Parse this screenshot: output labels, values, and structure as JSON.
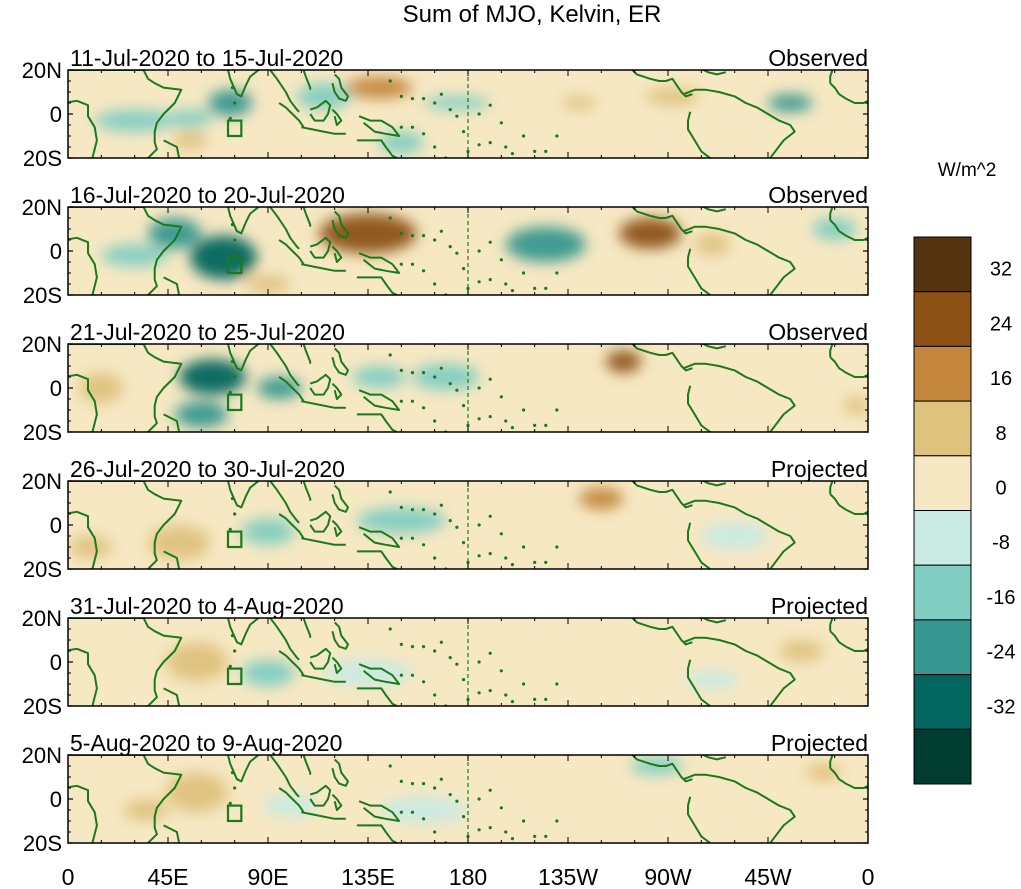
{
  "chart_data": {
    "type": "heatmap",
    "title": "Sum of MJO, Kelvin, ER",
    "units": "W/m^2",
    "x_ticks": [
      "0",
      "45E",
      "90E",
      "135E",
      "180",
      "135W",
      "90W",
      "45W",
      "0"
    ],
    "y_ticks": [
      "20N",
      "0",
      "20S"
    ],
    "xlim": [
      0,
      360
    ],
    "ylim": [
      -20,
      20
    ],
    "colorbar": {
      "levels": [
        32,
        24,
        16,
        8,
        0,
        -8,
        -16,
        -24,
        -32
      ],
      "colors": [
        "#553311",
        "#8c5115",
        "#c3863b",
        "#dfc27e",
        "#f6e8c3",
        "#c8eae3",
        "#80cdc1",
        "#35978f",
        "#03665e",
        "#003d30"
      ]
    },
    "panels": [
      {
        "date_range": "11-Jul-2020 to 15-Jul-2020",
        "status": "Observed",
        "anomalies": [
          {
            "lon": 30,
            "lat": -3,
            "rlon": 18,
            "rlat": 5,
            "value": -14
          },
          {
            "lon": 55,
            "lat": -2,
            "rlon": 10,
            "rlat": 4,
            "value": -10
          },
          {
            "lon": 73,
            "lat": 5,
            "rlon": 10,
            "rlat": 6,
            "value": -20
          },
          {
            "lon": 55,
            "lat": -12,
            "rlon": 8,
            "rlat": 4,
            "value": 10
          },
          {
            "lon": 115,
            "lat": 8,
            "rlon": 12,
            "rlat": 6,
            "value": -10
          },
          {
            "lon": 140,
            "lat": 12,
            "rlon": 15,
            "rlat": 5,
            "value": 22
          },
          {
            "lon": 175,
            "lat": 5,
            "rlon": 15,
            "rlat": 3,
            "value": -14
          },
          {
            "lon": 230,
            "lat": 5,
            "rlon": 8,
            "rlat": 3,
            "value": 10
          },
          {
            "lon": 272,
            "lat": 8,
            "rlon": 12,
            "rlat": 4,
            "value": 12
          },
          {
            "lon": 325,
            "lat": 5,
            "rlon": 10,
            "rlat": 4,
            "value": -20
          },
          {
            "lon": 150,
            "lat": -13,
            "rlon": 10,
            "rlat": 5,
            "value": -10
          }
        ]
      },
      {
        "date_range": "16-Jul-2020 to 20-Jul-2020",
        "status": "Observed",
        "anomalies": [
          {
            "lon": 70,
            "lat": -3,
            "rlon": 15,
            "rlat": 10,
            "value": -30
          },
          {
            "lon": 48,
            "lat": 8,
            "rlon": 12,
            "rlat": 7,
            "value": -18
          },
          {
            "lon": 30,
            "lat": -2,
            "rlon": 15,
            "rlat": 5,
            "value": -10
          },
          {
            "lon": 135,
            "lat": 8,
            "rlon": 22,
            "rlat": 9,
            "value": 24
          },
          {
            "lon": 215,
            "lat": 3,
            "rlon": 18,
            "rlat": 8,
            "value": -20
          },
          {
            "lon": 262,
            "lat": 8,
            "rlon": 14,
            "rlat": 7,
            "value": 26
          },
          {
            "lon": 290,
            "lat": 3,
            "rlon": 8,
            "rlat": 5,
            "value": 10
          },
          {
            "lon": 345,
            "lat": 10,
            "rlon": 10,
            "rlat": 5,
            "value": -12
          },
          {
            "lon": 90,
            "lat": -15,
            "rlon": 10,
            "rlat": 4,
            "value": 10
          }
        ]
      },
      {
        "date_range": "21-Jul-2020 to 25-Jul-2020",
        "status": "Observed",
        "anomalies": [
          {
            "lon": 65,
            "lat": 5,
            "rlon": 15,
            "rlat": 8,
            "value": -28
          },
          {
            "lon": 60,
            "lat": -12,
            "rlon": 12,
            "rlat": 6,
            "value": -24
          },
          {
            "lon": 95,
            "lat": 0,
            "rlon": 10,
            "rlat": 5,
            "value": -18
          },
          {
            "lon": 15,
            "lat": 0,
            "rlon": 10,
            "rlat": 7,
            "value": 10
          },
          {
            "lon": 140,
            "lat": 5,
            "rlon": 12,
            "rlat": 5,
            "value": -16
          },
          {
            "lon": 250,
            "lat": 12,
            "rlon": 8,
            "rlat": 5,
            "value": 30
          },
          {
            "lon": 170,
            "lat": 5,
            "rlon": 15,
            "rlat": 6,
            "value": -10
          },
          {
            "lon": 355,
            "lat": -8,
            "rlon": 6,
            "rlat": 4,
            "value": 12
          }
        ]
      },
      {
        "date_range": "26-Jul-2020 to 30-Jul-2020",
        "status": "Projected",
        "anomalies": [
          {
            "lon": 50,
            "lat": -8,
            "rlon": 14,
            "rlat": 8,
            "value": 8
          },
          {
            "lon": 90,
            "lat": -3,
            "rlon": 12,
            "rlat": 6,
            "value": -10
          },
          {
            "lon": 150,
            "lat": 2,
            "rlon": 20,
            "rlat": 6,
            "value": -14
          },
          {
            "lon": 240,
            "lat": 12,
            "rlon": 10,
            "rlat": 5,
            "value": 22
          },
          {
            "lon": 300,
            "lat": -5,
            "rlon": 15,
            "rlat": 6,
            "value": -8
          },
          {
            "lon": 10,
            "lat": -10,
            "rlon": 10,
            "rlat": 5,
            "value": 8
          }
        ]
      },
      {
        "date_range": "31-Jul-2020 to 4-Aug-2020",
        "status": "Projected",
        "anomalies": [
          {
            "lon": 58,
            "lat": 0,
            "rlon": 14,
            "rlat": 9,
            "value": 12
          },
          {
            "lon": 90,
            "lat": -5,
            "rlon": 12,
            "rlat": 6,
            "value": -10
          },
          {
            "lon": 135,
            "lat": -5,
            "rlon": 20,
            "rlat": 6,
            "value": -8
          },
          {
            "lon": 220,
            "lat": 8,
            "rlon": 15,
            "rlat": 4,
            "value": 6
          },
          {
            "lon": 330,
            "lat": 5,
            "rlon": 10,
            "rlat": 5,
            "value": 8
          },
          {
            "lon": 290,
            "lat": -8,
            "rlon": 12,
            "rlat": 4,
            "value": -8
          }
        ]
      },
      {
        "date_range": "5-Aug-2020 to 9-Aug-2020",
        "status": "Projected",
        "anomalies": [
          {
            "lon": 58,
            "lat": 3,
            "rlon": 14,
            "rlat": 9,
            "value": 14
          },
          {
            "lon": 35,
            "lat": -5,
            "rlon": 10,
            "rlat": 5,
            "value": 10
          },
          {
            "lon": 100,
            "lat": -3,
            "rlon": 12,
            "rlat": 5,
            "value": -8
          },
          {
            "lon": 160,
            "lat": -5,
            "rlon": 20,
            "rlat": 6,
            "value": -6
          },
          {
            "lon": 265,
            "lat": 15,
            "rlon": 12,
            "rlat": 4,
            "value": -14
          },
          {
            "lon": 340,
            "lat": 12,
            "rlon": 8,
            "rlat": 4,
            "value": 10
          },
          {
            "lon": 230,
            "lat": -10,
            "rlon": 15,
            "rlat": 5,
            "value": 6
          }
        ]
      }
    ]
  }
}
